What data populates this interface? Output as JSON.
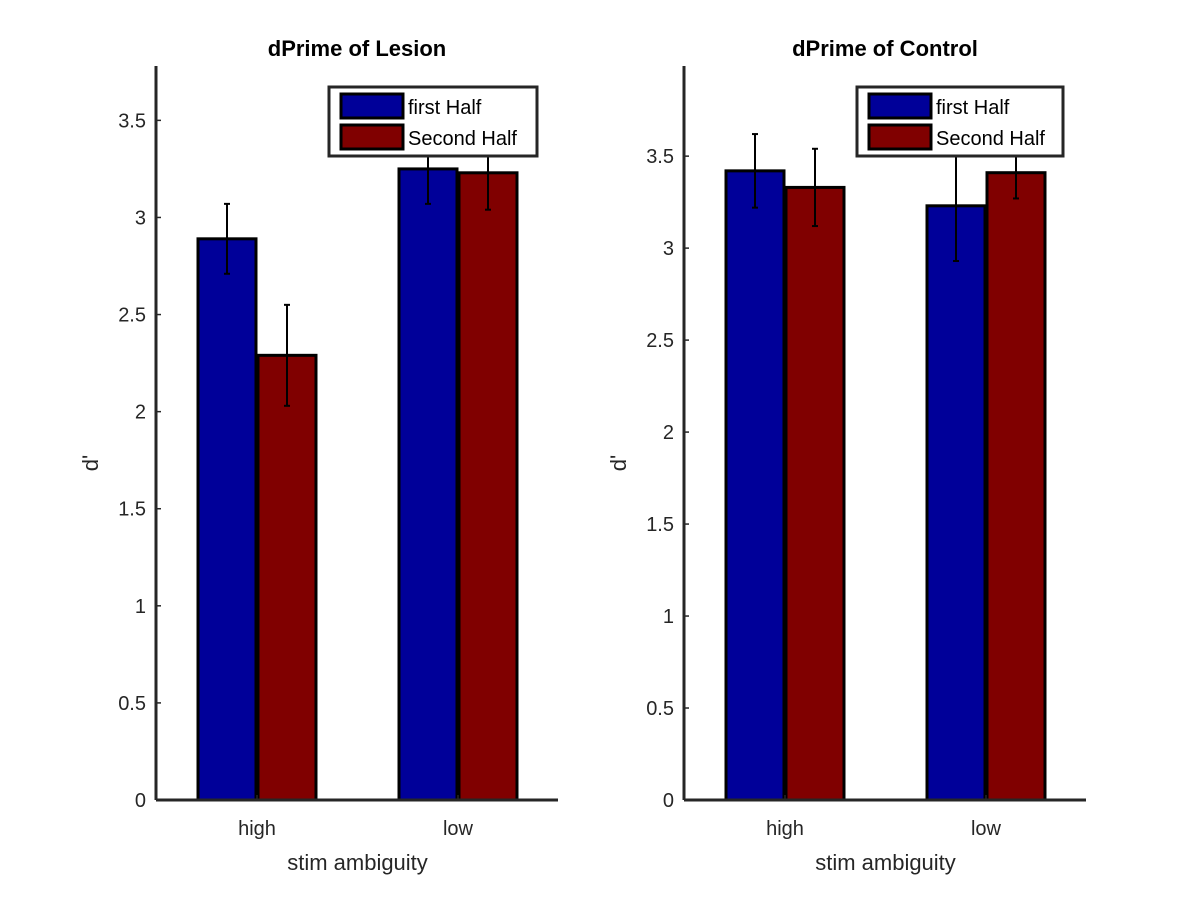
{
  "chart_data": [
    {
      "type": "bar",
      "title": "dPrime of Lesion",
      "xlabel": "stim ambiguity",
      "ylabel": "d'",
      "categories": [
        "high",
        "low"
      ],
      "ylim": [
        0,
        3.78
      ],
      "yticks": [
        0,
        0.5,
        1,
        1.5,
        2,
        2.5,
        3,
        3.5
      ],
      "ytick_labels": [
        "0",
        "0.5",
        "1",
        "1.5",
        "2",
        "2.5",
        "3",
        "3.5"
      ],
      "legend_position": "top-right",
      "series": [
        {
          "name": "first Half",
          "color": "#000099",
          "values": [
            2.89,
            3.25
          ],
          "errors": [
            0.18,
            0.18
          ]
        },
        {
          "name": "Second Half",
          "color": "#800000",
          "values": [
            2.29,
            3.23
          ],
          "errors": [
            0.26,
            0.19
          ]
        }
      ]
    },
    {
      "type": "bar",
      "title": "dPrime of Control",
      "xlabel": "stim ambiguity",
      "ylabel": "d'",
      "categories": [
        "high",
        "low"
      ],
      "ylim": [
        0,
        3.99
      ],
      "yticks": [
        0,
        0.5,
        1,
        1.5,
        2,
        2.5,
        3,
        3.5
      ],
      "ytick_labels": [
        "0",
        "0.5",
        "1",
        "1.5",
        "2",
        "2.5",
        "3",
        "3.5"
      ],
      "legend_position": "top-right",
      "series": [
        {
          "name": "first Half",
          "color": "#000099",
          "values": [
            3.42,
            3.23
          ],
          "errors": [
            0.2,
            0.3
          ]
        },
        {
          "name": "Second Half",
          "color": "#800000",
          "values": [
            3.33,
            3.41
          ],
          "errors": [
            0.21,
            0.14
          ]
        }
      ]
    }
  ]
}
